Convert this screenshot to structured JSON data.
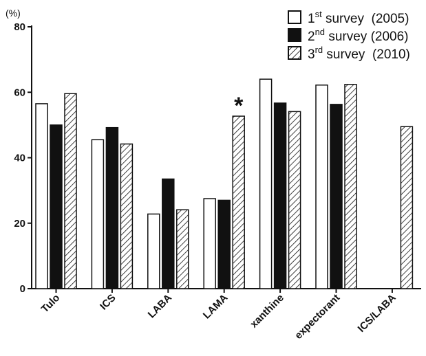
{
  "chart_data": {
    "type": "bar",
    "categories": [
      "Tulo",
      "ICS",
      "LABA",
      "LAMA",
      "xanthine",
      "expectorant",
      "ICS/LABA"
    ],
    "series": [
      {
        "name_parts": [
          "1",
          "st",
          " survey  (2005)"
        ],
        "style": "white",
        "values": [
          56.5,
          45.5,
          22.8,
          27.5,
          64,
          62.2,
          null
        ]
      },
      {
        "name_parts": [
          "2",
          "nd",
          " survey (2006)"
        ],
        "style": "black",
        "values": [
          50,
          49.2,
          33.5,
          27,
          56.7,
          56.3,
          null
        ]
      },
      {
        "name_parts": [
          "3",
          "rd",
          " survey  (2010)"
        ],
        "style": "hatched",
        "values": [
          59.6,
          44.2,
          24.1,
          52.7,
          54.1,
          62.4,
          49.5
        ]
      }
    ],
    "ylim": [
      0,
      80
    ],
    "yticks": [
      0,
      20,
      40,
      60,
      80
    ],
    "ylabel": "(%)",
    "annotations": [
      {
        "text": "*",
        "category": "LAMA",
        "series_index": 2
      }
    ],
    "grid": false,
    "legend_position": "top-right"
  }
}
